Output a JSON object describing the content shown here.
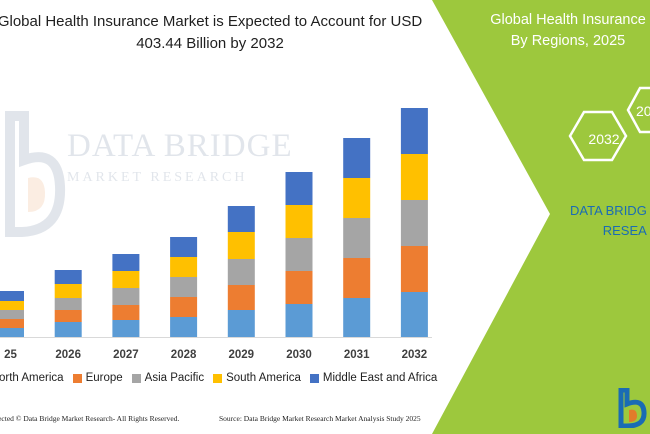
{
  "title_lines": [
    "Global Health Insurance Market is Expected to Account for USD",
    "403.44 Billion by 2032"
  ],
  "watermark": {
    "line1": "DATA BRIDGE",
    "line2": "MARKET RESEARCH"
  },
  "panel": {
    "title_lines": [
      "Global Health Insurance",
      "By Regions, 2025"
    ],
    "hex_labels": [
      "2032",
      "20"
    ],
    "brand_lines": [
      "DATA BRIDG",
      "RESEA"
    ]
  },
  "footer": {
    "left": "tected © Data Bridge Market Research- All Rights Reserved.",
    "right": "Source: Data Bridge Market Research Market Analysis Study 2025"
  },
  "colors": {
    "green_panel": "#9dc83d",
    "axis": "#d9d9d9"
  },
  "chart_data": {
    "type": "bar",
    "stacked": true,
    "categories": [
      "25",
      "2026",
      "2027",
      "2028",
      "2029",
      "2030",
      "2031",
      "2032"
    ],
    "series": [
      {
        "name": "orth America",
        "color": "#5b9bd5",
        "values": [
          9,
          15,
          17,
          20,
          27,
          33,
          39,
          45
        ]
      },
      {
        "name": "Europe",
        "color": "#ed7d31",
        "values": [
          9,
          12,
          15,
          20,
          25,
          33,
          40,
          46
        ]
      },
      {
        "name": "Asia Pacific",
        "color": "#a5a5a5",
        "values": [
          9,
          12,
          17,
          20,
          26,
          33,
          40,
          46
        ]
      },
      {
        "name": "South America",
        "color": "#ffc000",
        "values": [
          9,
          14,
          17,
          20,
          27,
          33,
          40,
          46
        ]
      },
      {
        "name": "Middle East and Africa",
        "color": "#4472c4",
        "values": [
          10,
          14,
          17,
          20,
          26,
          33,
          40,
          46
        ]
      }
    ],
    "legend_position": "bottom",
    "grid": false,
    "xlabel": "",
    "ylabel": ""
  }
}
